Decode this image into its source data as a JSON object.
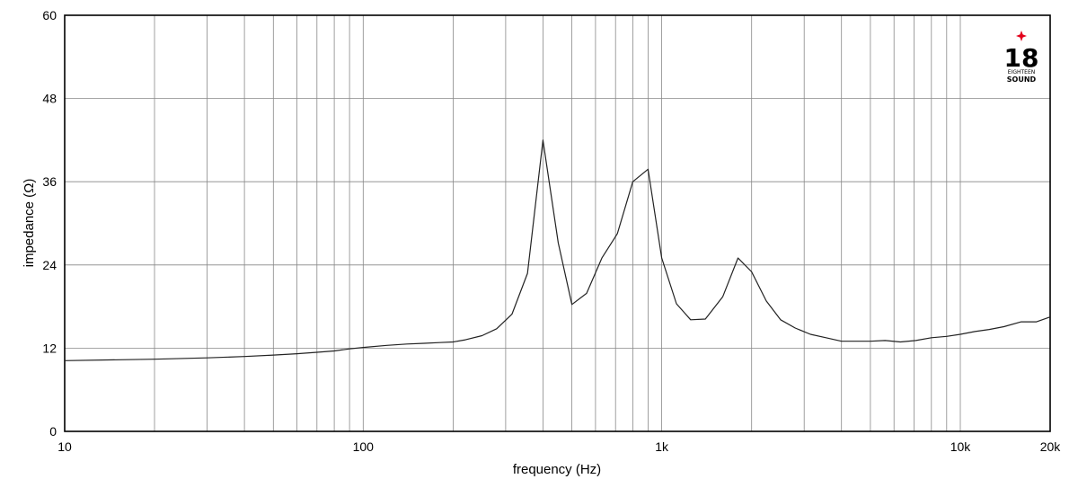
{
  "chart_data": {
    "type": "line",
    "xlabel": "frequency (Hz)",
    "ylabel": "impedance (Ω)",
    "xscale": "log",
    "xlim": [
      10,
      20000
    ],
    "ylim": [
      0,
      60
    ],
    "grid": true,
    "x_ticks": [
      {
        "value": 10,
        "label": "10"
      },
      {
        "value": 100,
        "label": "100"
      },
      {
        "value": 1000,
        "label": "1k"
      },
      {
        "value": 10000,
        "label": "10k"
      },
      {
        "value": 20000,
        "label": "20k"
      }
    ],
    "y_ticks": [
      {
        "value": 0,
        "label": "0"
      },
      {
        "value": 12,
        "label": "12"
      },
      {
        "value": 24,
        "label": "24"
      },
      {
        "value": 36,
        "label": "36"
      },
      {
        "value": 48,
        "label": "48"
      },
      {
        "value": 60,
        "label": "60"
      }
    ],
    "series": [
      {
        "x": [
          10,
          20,
          30,
          40,
          50,
          60,
          70,
          80,
          90,
          100,
          120,
          140,
          160,
          180,
          200,
          220,
          250,
          280,
          315,
          355,
          400,
          450,
          500,
          560,
          630,
          710,
          800,
          900,
          1000,
          1120,
          1250,
          1400,
          1600,
          1800,
          2000,
          2240,
          2500,
          2800,
          3150,
          3550,
          4000,
          4500,
          5000,
          5600,
          6300,
          7100,
          8000,
          9000,
          10000,
          11200,
          12500,
          14000,
          16000,
          18000,
          20000
        ],
        "y": [
          10.2,
          10.4,
          10.6,
          10.8,
          11.0,
          11.2,
          11.4,
          11.6,
          11.9,
          12.1,
          12.4,
          12.6,
          12.7,
          12.8,
          12.9,
          13.2,
          13.8,
          14.8,
          16.9,
          22.8,
          42.0,
          27.2,
          18.3,
          19.9,
          25.0,
          28.5,
          36.0,
          37.8,
          25.0,
          18.4,
          16.1,
          16.2,
          19.4,
          25.0,
          23.0,
          18.8,
          16.1,
          14.9,
          14.0,
          13.5,
          13.0,
          13.0,
          13.0,
          13.1,
          12.9,
          13.1,
          13.5,
          13.7,
          14.0,
          14.4,
          14.7,
          15.1,
          15.8,
          15.8,
          16.5
        ]
      }
    ]
  },
  "logo": {
    "numeral": "18",
    "tagline": "EIGHTEEN",
    "word": "SOUND",
    "star_color": "#e3001b"
  }
}
